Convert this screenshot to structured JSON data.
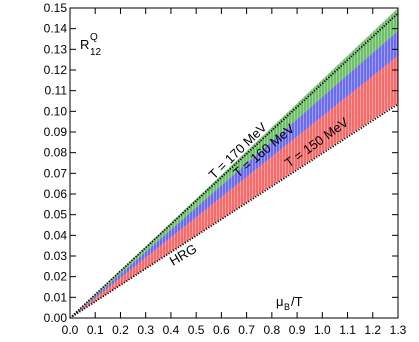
{
  "chart_data": {
    "type": "area",
    "title": "",
    "xlabel": "",
    "ylabel": "",
    "xlim": [
      0.0,
      1.3
    ],
    "ylim": [
      0.0,
      0.15
    ],
    "x_ticks": [
      "0.0",
      "0.1",
      "0.2",
      "0.3",
      "0.4",
      "0.5",
      "0.6",
      "0.7",
      "0.8",
      "0.9",
      "1.0",
      "1.1",
      "1.2",
      "1.3"
    ],
    "y_ticks": [
      "0.00",
      "0.01",
      "0.02",
      "0.03",
      "0.04",
      "0.05",
      "0.06",
      "0.07",
      "0.08",
      "0.09",
      "0.10",
      "0.11",
      "0.12",
      "0.13",
      "0.14",
      "0.15"
    ],
    "grid": false,
    "bands": [
      {
        "label": "T = 170 MeV",
        "color": "#6fbf6a",
        "x": [
          0.0,
          1.3
        ],
        "lower": [
          0.0,
          0.139
        ],
        "upper": [
          0.0,
          0.15
        ]
      },
      {
        "label": "T = 160 MeV",
        "color": "#6b6bf0",
        "x": [
          0.0,
          1.3
        ],
        "lower": [
          0.0,
          0.123
        ],
        "upper": [
          0.0,
          0.139
        ]
      },
      {
        "label": "T = 150 MeV",
        "color": "#f36b6b",
        "x": [
          0.0,
          1.3
        ],
        "lower": [
          0.0,
          0.104
        ],
        "upper": [
          0.0,
          0.127
        ]
      }
    ],
    "lines": [
      {
        "style": "dotted",
        "x": [
          0.0,
          1.3
        ],
        "y": [
          0.0,
          0.1475
        ]
      },
      {
        "label": "HRG",
        "style": "dotted",
        "x": [
          0.0,
          1.3
        ],
        "y": [
          0.0,
          0.1035
        ]
      }
    ],
    "annotations": {
      "ylabel_main": "R",
      "ylabel_sup": "Q",
      "ylabel_sub": "12",
      "xlabel_main": "μ",
      "xlabel_sub": "B",
      "xlabel_tail": "/T",
      "band_170": "T = 170 MeV",
      "band_160": "T = 160 MeV",
      "band_150": "T = 150 MeV",
      "hrg": "HRG"
    }
  }
}
